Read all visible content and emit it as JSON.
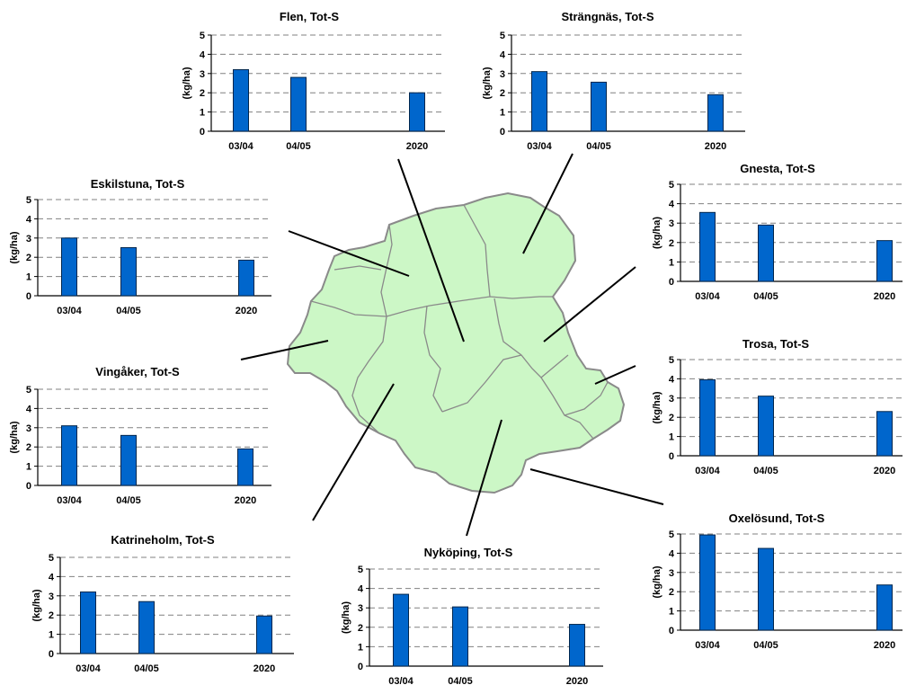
{
  "colors": {
    "bar": "#0066cc",
    "bar_stroke": "#00264d",
    "map_fill": "#ccf7c6",
    "map_stroke": "#8a8a8a",
    "grid": "#808080"
  },
  "chart_data": [
    {
      "id": "flen",
      "type": "bar",
      "title": "Flen, Tot-S",
      "ylabel": "(kg/ha)",
      "ylim": [
        0,
        5
      ],
      "yticks": [
        0,
        1,
        2,
        3,
        4,
        5
      ],
      "categories": [
        "03/04",
        "04/05",
        "2020"
      ],
      "values": [
        3.2,
        2.8,
        2.0
      ],
      "grid": "dashed-horizontal"
    },
    {
      "id": "strangnas",
      "type": "bar",
      "title": "Strängnäs, Tot-S",
      "ylabel": "(kg/ha)",
      "ylim": [
        0,
        5
      ],
      "yticks": [
        0,
        1,
        2,
        3,
        4,
        5
      ],
      "categories": [
        "03/04",
        "04/05",
        "2020"
      ],
      "values": [
        3.1,
        2.55,
        1.9
      ],
      "grid": "dashed-horizontal"
    },
    {
      "id": "eskilstuna",
      "type": "bar",
      "title": "Eskilstuna, Tot-S",
      "ylabel": "(kg/ha)",
      "ylim": [
        0,
        5
      ],
      "yticks": [
        0,
        1,
        2,
        3,
        4,
        5
      ],
      "categories": [
        "03/04",
        "04/05",
        "2020"
      ],
      "values": [
        3.0,
        2.5,
        1.85
      ],
      "grid": "dashed-horizontal"
    },
    {
      "id": "gnesta",
      "type": "bar",
      "title": "Gnesta, Tot-S",
      "ylabel": "(kg/ha)",
      "ylim": [
        0,
        5
      ],
      "yticks": [
        0,
        1,
        2,
        3,
        4,
        5
      ],
      "categories": [
        "03/04",
        "04/05",
        "2020"
      ],
      "values": [
        3.55,
        2.9,
        2.1
      ],
      "grid": "dashed-horizontal"
    },
    {
      "id": "vingaker",
      "type": "bar",
      "title": "Vingåker, Tot-S",
      "ylabel": "(kg/ha)",
      "ylim": [
        0,
        5
      ],
      "yticks": [
        0,
        1,
        2,
        3,
        4,
        5
      ],
      "categories": [
        "03/04",
        "04/05",
        "2020"
      ],
      "values": [
        3.1,
        2.6,
        1.9
      ],
      "grid": "dashed-horizontal"
    },
    {
      "id": "trosa",
      "type": "bar",
      "title": "Trosa, Tot-S",
      "ylabel": "(kg/ha)",
      "ylim": [
        0,
        5
      ],
      "yticks": [
        0,
        1,
        2,
        3,
        4,
        5
      ],
      "categories": [
        "03/04",
        "04/05",
        "2020"
      ],
      "values": [
        3.95,
        3.1,
        2.3
      ],
      "grid": "dashed-horizontal"
    },
    {
      "id": "katrineholm",
      "type": "bar",
      "title": "Katrineholm, Tot-S",
      "ylabel": "(kg/ha)",
      "ylim": [
        0,
        5
      ],
      "yticks": [
        0,
        1,
        2,
        3,
        4,
        5
      ],
      "categories": [
        "03/04",
        "04/05",
        "2020"
      ],
      "values": [
        3.2,
        2.7,
        1.95
      ],
      "grid": "dashed-horizontal"
    },
    {
      "id": "nykoping",
      "type": "bar",
      "title": "Nyköping, Tot-S",
      "ylabel": "(kg/ha)",
      "ylim": [
        0,
        5
      ],
      "yticks": [
        0,
        1,
        2,
        3,
        4,
        5
      ],
      "categories": [
        "03/04",
        "04/05",
        "2020"
      ],
      "values": [
        3.7,
        3.05,
        2.15
      ],
      "grid": "dashed-horizontal"
    },
    {
      "id": "oxelosund",
      "type": "bar",
      "title": "Oxelösund, Tot-S",
      "ylabel": "(kg/ha)",
      "ylim": [
        0,
        5
      ],
      "yticks": [
        0,
        1,
        2,
        3,
        4,
        5
      ],
      "categories": [
        "03/04",
        "04/05",
        "2020"
      ],
      "values": [
        4.95,
        4.25,
        2.35
      ],
      "grid": "dashed-horizontal"
    }
  ]
}
